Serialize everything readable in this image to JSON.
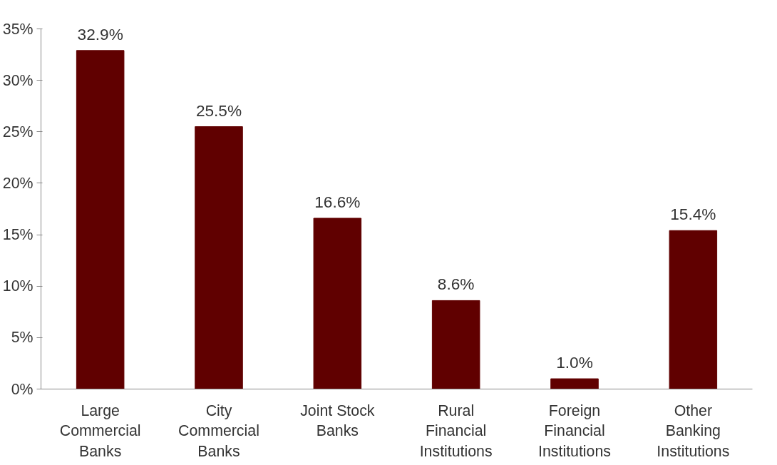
{
  "chart_data": {
    "type": "bar",
    "categories": [
      "Large Commercial Banks",
      "City Commercial Banks",
      "Joint Stock Banks",
      "Rural Financial Institutions",
      "Foreign Financial Institutions",
      "Other Banking Institutions"
    ],
    "values": [
      32.9,
      25.5,
      16.6,
      8.6,
      1.0,
      15.4
    ],
    "value_labels": [
      "32.9%",
      "25.5%",
      "16.6%",
      "8.6%",
      "1.0%",
      "15.4%"
    ],
    "color": "#600000",
    "ylim": [
      0,
      35
    ],
    "yticks": [
      {
        "value": 0,
        "label": "0%"
      },
      {
        "value": 5,
        "label": "5%"
      },
      {
        "value": 10,
        "label": "10%"
      },
      {
        "value": 15,
        "label": "15%"
      },
      {
        "value": 20,
        "label": "20%"
      },
      {
        "value": 25,
        "label": "25%"
      },
      {
        "value": 30,
        "label": "30%"
      },
      {
        "value": 35,
        "label": "35%"
      }
    ],
    "grid": false
  }
}
